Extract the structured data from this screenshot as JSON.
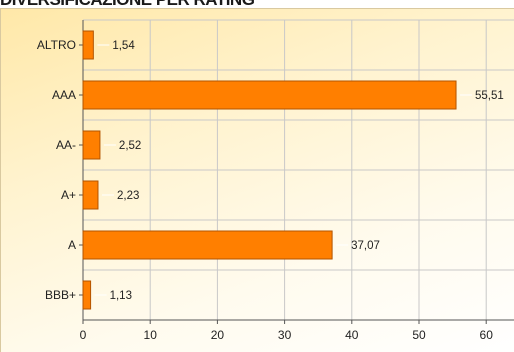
{
  "chart_data": {
    "type": "bar",
    "orientation": "horizontal",
    "title": "DIVERSIFICAZIONE PER RATING",
    "categories": [
      "ALTRO",
      "AAA",
      "AA-",
      "A+",
      "A",
      "BBB+"
    ],
    "values": [
      1.54,
      55.51,
      2.52,
      2.23,
      37.07,
      1.13
    ],
    "data_labels": [
      "1,54",
      "55,51",
      "2,52",
      "2,23",
      "37,07",
      "1,13"
    ],
    "x_ticks": [
      "0",
      "10",
      "20",
      "30",
      "40",
      "50",
      "60"
    ],
    "xlim": [
      0,
      64
    ],
    "grid": true,
    "legend": "none",
    "colors": {
      "bar_fill": "#ff7f00",
      "bar_stroke": "#b35400",
      "grid": "#c8c8c8",
      "axis": "#555555",
      "leader": "#ffffff"
    }
  }
}
